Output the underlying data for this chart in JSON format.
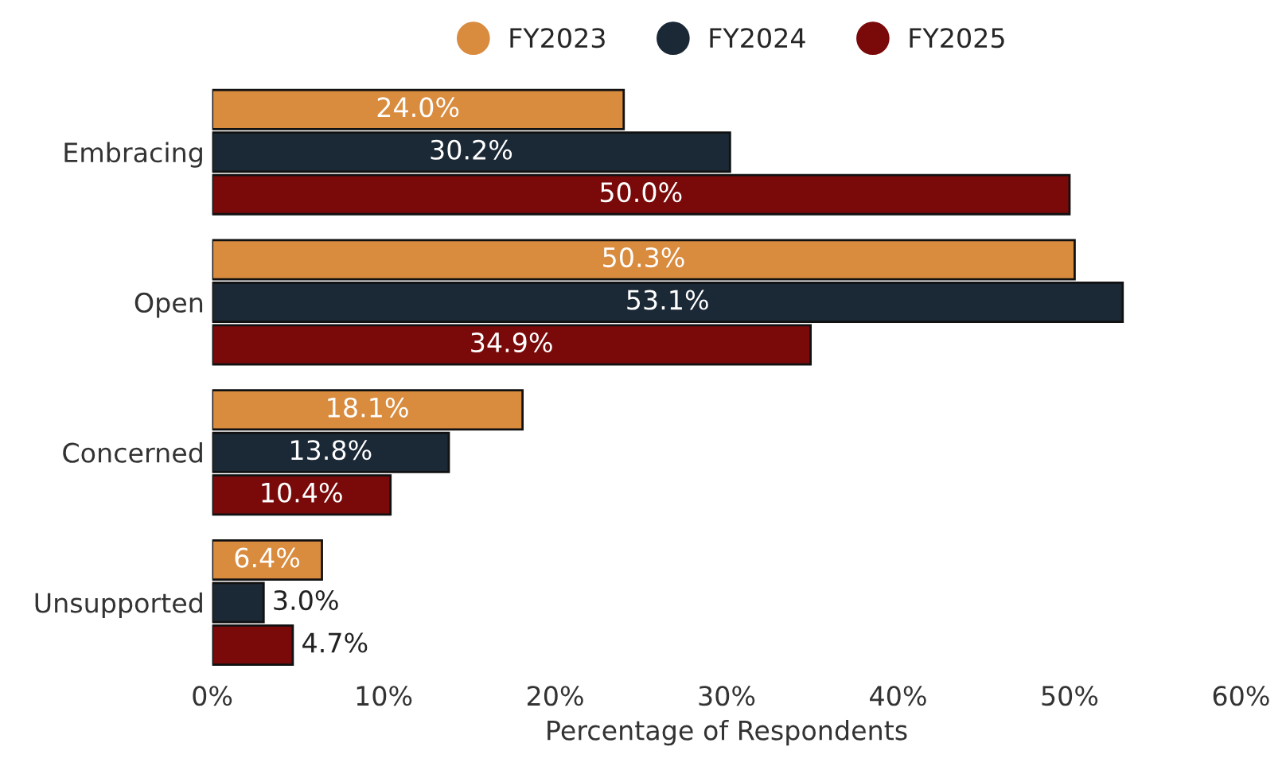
{
  "chart_data": {
    "type": "bar",
    "orientation": "horizontal",
    "xlabel": "Percentage of Respondents",
    "categories": [
      "Embracing",
      "Open",
      "Concerned",
      "Unsupported"
    ],
    "series": [
      {
        "name": "FY2023",
        "color": "#d98b3e",
        "values": [
          24.0,
          50.3,
          18.1,
          6.4
        ],
        "value_labels": [
          "24.0%",
          "50.3%",
          "18.1%",
          "6.4%"
        ]
      },
      {
        "name": "FY2024",
        "color": "#1b2836",
        "values": [
          30.2,
          53.1,
          13.8,
          3.0
        ],
        "value_labels": [
          "30.2%",
          "53.1%",
          "13.8%",
          "3.0%"
        ]
      },
      {
        "name": "FY2025",
        "color": "#7a0a0a",
        "values": [
          50.0,
          34.9,
          10.4,
          4.7
        ],
        "value_labels": [
          "50.0%",
          "34.9%",
          "10.4%",
          "4.7%"
        ]
      }
    ],
    "xlim": [
      0,
      60
    ],
    "xticks": [
      {
        "value": 0,
        "label": "0%"
      },
      {
        "value": 10,
        "label": "10%"
      },
      {
        "value": 20,
        "label": "20%"
      },
      {
        "value": 30,
        "label": "30%"
      },
      {
        "value": 40,
        "label": "40%"
      },
      {
        "value": 50,
        "label": "50%"
      },
      {
        "value": 60,
        "label": "60%"
      }
    ],
    "legend": "top",
    "marker": "circle",
    "grid": false
  }
}
